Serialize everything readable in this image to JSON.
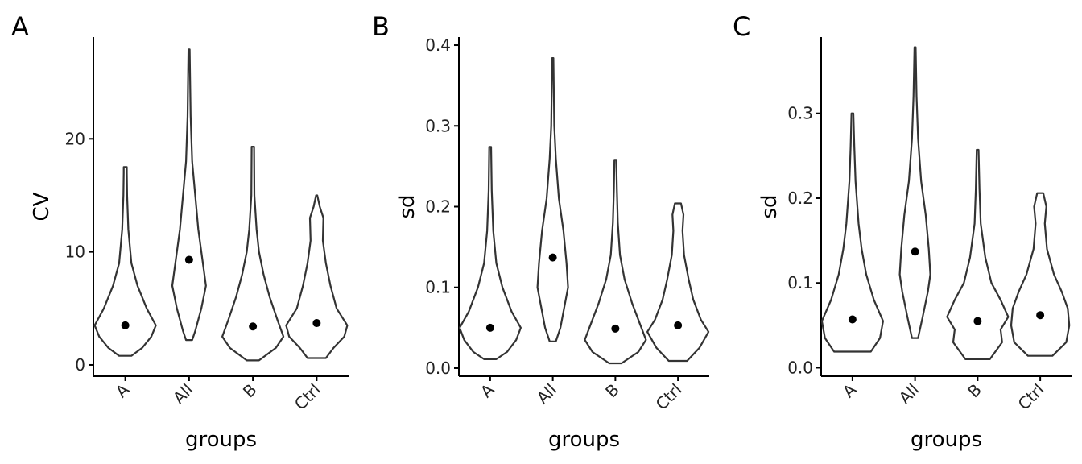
{
  "chart_data": [
    {
      "type": "violin",
      "panel_tag": "A",
      "xlabel": "groups",
      "ylabel": "CV",
      "categories": [
        "A",
        "All",
        "B",
        "Ctrl"
      ],
      "yticks": [
        "0",
        "10",
        "20"
      ],
      "tick_values": [
        0,
        10,
        20
      ],
      "ylim": [
        -1,
        29
      ],
      "points": [
        3.5,
        9.3,
        3.4,
        3.7
      ],
      "ranges": [
        [
          0.8,
          17.5
        ],
        [
          2.2,
          27.9
        ],
        [
          0.4,
          19.3
        ],
        [
          0.6,
          15.0
        ]
      ],
      "profiles": [
        [
          [
            0.8,
            0.2
          ],
          [
            1.5,
            0.55
          ],
          [
            2.5,
            0.85
          ],
          [
            3.5,
            1.0
          ],
          [
            5,
            0.7
          ],
          [
            7,
            0.4
          ],
          [
            9,
            0.2
          ],
          [
            12,
            0.1
          ],
          [
            15,
            0.06
          ],
          [
            17,
            0.05
          ],
          [
            17.5,
            0.05
          ]
        ],
        [
          [
            2.2,
            0.1
          ],
          [
            3,
            0.2
          ],
          [
            5,
            0.4
          ],
          [
            7,
            0.55
          ],
          [
            9,
            0.45
          ],
          [
            12,
            0.3
          ],
          [
            15,
            0.2
          ],
          [
            18,
            0.1
          ],
          [
            22,
            0.05
          ],
          [
            27.9,
            0.02
          ]
        ],
        [
          [
            0.4,
            0.2
          ],
          [
            1.5,
            0.75
          ],
          [
            2.5,
            1.0
          ],
          [
            4,
            0.8
          ],
          [
            6,
            0.55
          ],
          [
            8,
            0.35
          ],
          [
            10,
            0.2
          ],
          [
            12,
            0.12
          ],
          [
            15,
            0.05
          ],
          [
            19.3,
            0.04
          ]
        ],
        [
          [
            0.6,
            0.3
          ],
          [
            1.5,
            0.55
          ],
          [
            2.5,
            0.9
          ],
          [
            3.5,
            1.0
          ],
          [
            5,
            0.65
          ],
          [
            7,
            0.45
          ],
          [
            9,
            0.3
          ],
          [
            11,
            0.2
          ],
          [
            13,
            0.22
          ],
          [
            14,
            0.1
          ],
          [
            15,
            0.02
          ]
        ]
      ]
    },
    {
      "type": "violin",
      "panel_tag": "B",
      "xlabel": "groups",
      "ylabel": "sd",
      "categories": [
        "A",
        "All",
        "B",
        "Ctrl"
      ],
      "yticks": [
        "0.0",
        "0.1",
        "0.2",
        "0.3",
        "0.4"
      ],
      "tick_values": [
        0,
        0.1,
        0.2,
        0.3,
        0.4
      ],
      "ylim": [
        -0.01,
        0.41
      ],
      "points": [
        0.05,
        0.137,
        0.049,
        0.053
      ],
      "ranges": [
        [
          0.011,
          0.274
        ],
        [
          0.033,
          0.384
        ],
        [
          0.006,
          0.258
        ],
        [
          0.009,
          0.204
        ]
      ],
      "profiles": [
        [
          [
            0.011,
            0.2
          ],
          [
            0.02,
            0.55
          ],
          [
            0.035,
            0.85
          ],
          [
            0.05,
            1.0
          ],
          [
            0.07,
            0.7
          ],
          [
            0.1,
            0.4
          ],
          [
            0.13,
            0.2
          ],
          [
            0.17,
            0.1
          ],
          [
            0.22,
            0.05
          ],
          [
            0.274,
            0.03
          ]
        ],
        [
          [
            0.033,
            0.1
          ],
          [
            0.05,
            0.25
          ],
          [
            0.08,
            0.4
          ],
          [
            0.1,
            0.5
          ],
          [
            0.13,
            0.45
          ],
          [
            0.17,
            0.35
          ],
          [
            0.21,
            0.2
          ],
          [
            0.26,
            0.1
          ],
          [
            0.3,
            0.05
          ],
          [
            0.384,
            0.02
          ]
        ],
        [
          [
            0.006,
            0.2
          ],
          [
            0.02,
            0.75
          ],
          [
            0.035,
            1.0
          ],
          [
            0.055,
            0.8
          ],
          [
            0.08,
            0.55
          ],
          [
            0.11,
            0.3
          ],
          [
            0.14,
            0.15
          ],
          [
            0.18,
            0.08
          ],
          [
            0.22,
            0.05
          ],
          [
            0.258,
            0.03
          ]
        ],
        [
          [
            0.009,
            0.3
          ],
          [
            0.025,
            0.7
          ],
          [
            0.045,
            1.0
          ],
          [
            0.06,
            0.75
          ],
          [
            0.085,
            0.5
          ],
          [
            0.11,
            0.35
          ],
          [
            0.14,
            0.2
          ],
          [
            0.17,
            0.15
          ],
          [
            0.19,
            0.18
          ],
          [
            0.204,
            0.1
          ]
        ]
      ]
    },
    {
      "type": "violin",
      "panel_tag": "C",
      "xlabel": "groups",
      "ylabel": "sd",
      "categories": [
        "A",
        "All",
        "B",
        "Ctrl"
      ],
      "yticks": [
        "0.0",
        "0.1",
        "0.2",
        "0.3"
      ],
      "tick_values": [
        0,
        0.1,
        0.2,
        0.3
      ],
      "ylim": [
        -0.01,
        0.39
      ],
      "points": [
        0.057,
        0.137,
        0.055,
        0.062
      ],
      "ranges": [
        [
          0.019,
          0.3
        ],
        [
          0.035,
          0.378
        ],
        [
          0.01,
          0.257
        ],
        [
          0.014,
          0.206
        ]
      ],
      "profiles": [
        [
          [
            0.019,
            0.6
          ],
          [
            0.035,
            0.9
          ],
          [
            0.055,
            1.0
          ],
          [
            0.08,
            0.7
          ],
          [
            0.11,
            0.45
          ],
          [
            0.14,
            0.3
          ],
          [
            0.17,
            0.2
          ],
          [
            0.22,
            0.1
          ],
          [
            0.26,
            0.06
          ],
          [
            0.3,
            0.03
          ]
        ],
        [
          [
            0.035,
            0.1
          ],
          [
            0.06,
            0.25
          ],
          [
            0.09,
            0.42
          ],
          [
            0.11,
            0.5
          ],
          [
            0.14,
            0.45
          ],
          [
            0.18,
            0.35
          ],
          [
            0.22,
            0.2
          ],
          [
            0.27,
            0.1
          ],
          [
            0.32,
            0.05
          ],
          [
            0.378,
            0.02
          ]
        ],
        [
          [
            0.01,
            0.4
          ],
          [
            0.03,
            0.8
          ],
          [
            0.045,
            0.75
          ],
          [
            0.06,
            1.0
          ],
          [
            0.08,
            0.75
          ],
          [
            0.1,
            0.45
          ],
          [
            0.13,
            0.25
          ],
          [
            0.17,
            0.1
          ],
          [
            0.21,
            0.06
          ],
          [
            0.257,
            0.03
          ]
        ],
        [
          [
            0.014,
            0.4
          ],
          [
            0.03,
            0.85
          ],
          [
            0.05,
            0.95
          ],
          [
            0.07,
            0.9
          ],
          [
            0.09,
            0.7
          ],
          [
            0.11,
            0.45
          ],
          [
            0.14,
            0.22
          ],
          [
            0.17,
            0.15
          ],
          [
            0.19,
            0.2
          ],
          [
            0.206,
            0.1
          ]
        ]
      ]
    }
  ]
}
